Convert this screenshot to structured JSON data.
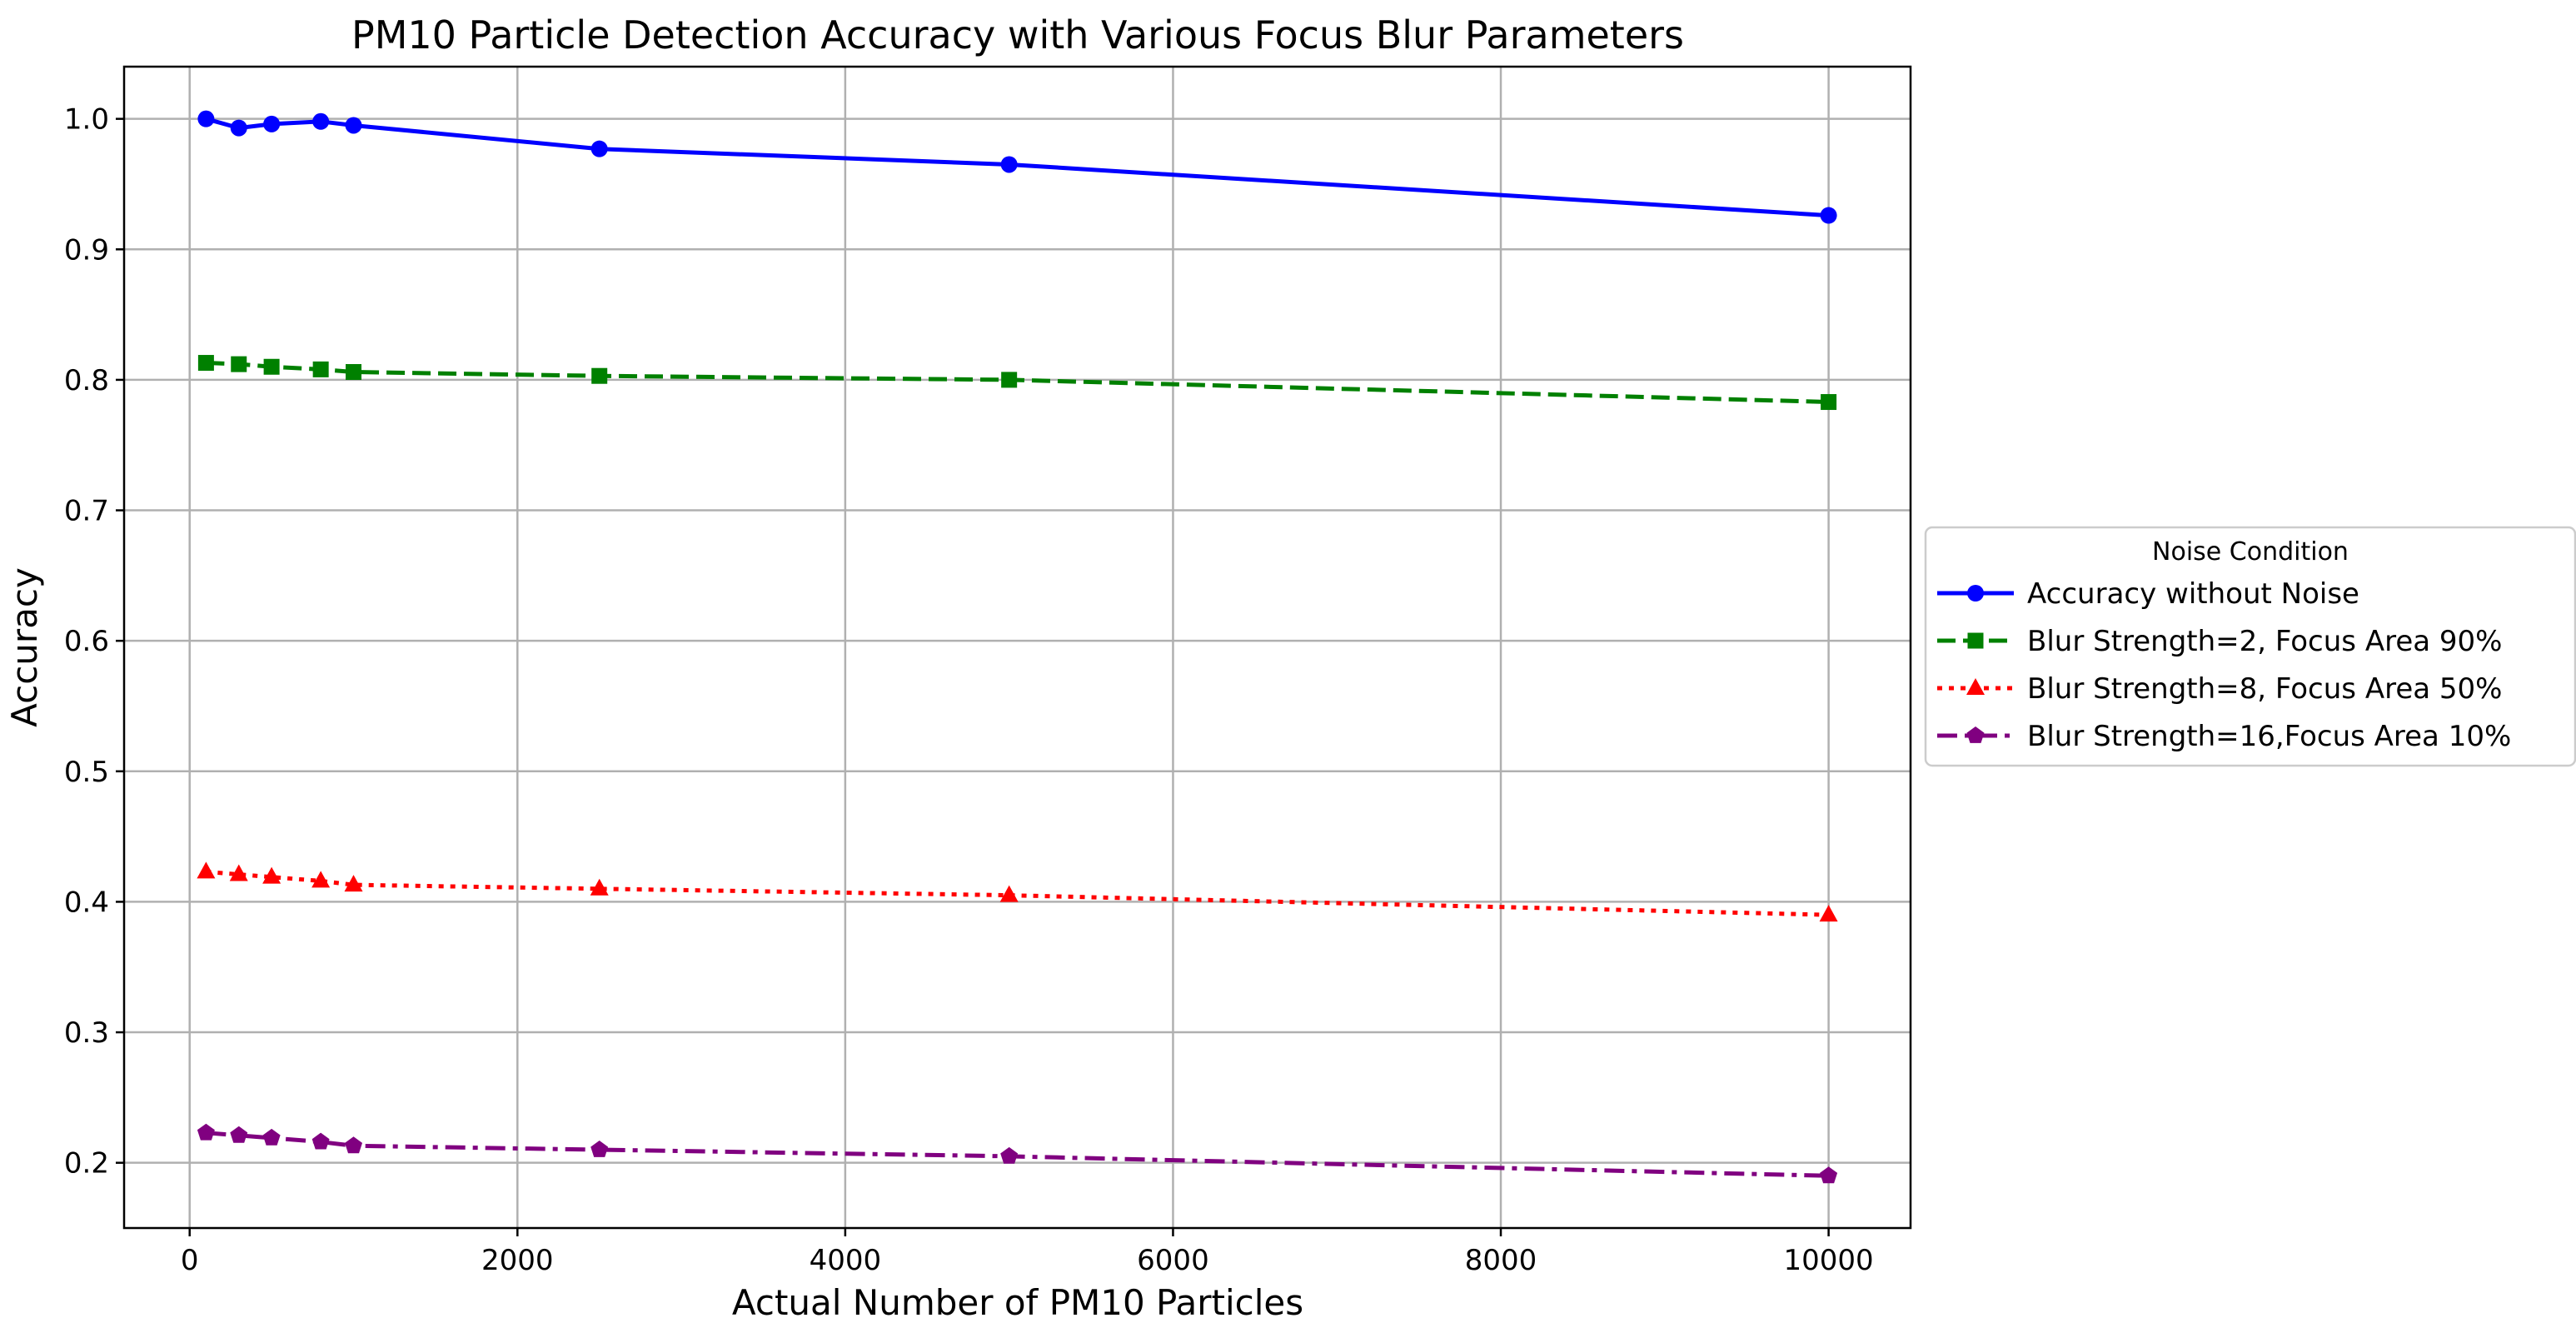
{
  "chart_data": {
    "type": "line",
    "title": "PM10 Particle Detection Accuracy with Various Focus Blur Parameters",
    "xlabel": "Actual Number of PM10 Particles",
    "ylabel": "Accuracy",
    "xlim": [
      -400,
      10500
    ],
    "ylim": [
      0.15,
      1.04
    ],
    "xticks": [
      0,
      2000,
      4000,
      6000,
      8000,
      10000
    ],
    "xtick_labels": [
      "0",
      "2000",
      "4000",
      "6000",
      "8000",
      "10000"
    ],
    "yticks": [
      0.2,
      0.3,
      0.4,
      0.5,
      0.6,
      0.7,
      0.8,
      0.9,
      1.0
    ],
    "ytick_labels": [
      "0.2",
      "0.3",
      "0.4",
      "0.5",
      "0.6",
      "0.7",
      "0.8",
      "0.9",
      "1.0"
    ],
    "grid": true,
    "x": [
      100,
      300,
      500,
      800,
      1000,
      2500,
      5000,
      10000
    ],
    "legend": {
      "title": "Noise Condition",
      "placement": "center-right, outside plot"
    },
    "series": [
      {
        "name": "Accuracy without Noise",
        "color": "#0000ff",
        "marker": "circle",
        "line_style": "solid",
        "values": [
          1.0,
          0.993,
          0.996,
          0.998,
          0.995,
          0.977,
          0.965,
          0.926
        ]
      },
      {
        "name": "Blur Strength=2, Focus Area 90%",
        "color": "#008000",
        "marker": "square",
        "line_style": "dashed",
        "values": [
          0.813,
          0.812,
          0.81,
          0.808,
          0.806,
          0.803,
          0.8,
          0.783
        ]
      },
      {
        "name": "Blur Strength=8, Focus Area 50%",
        "color": "#ff0000",
        "marker": "triangle",
        "line_style": "dotted",
        "values": [
          0.423,
          0.421,
          0.419,
          0.416,
          0.413,
          0.41,
          0.405,
          0.39
        ]
      },
      {
        "name": "Blur Strength=16,Focus Area 10%",
        "color": "#800080",
        "marker": "pentagon",
        "line_style": "dashdot",
        "values": [
          0.223,
          0.221,
          0.219,
          0.216,
          0.213,
          0.21,
          0.205,
          0.19
        ]
      }
    ]
  }
}
